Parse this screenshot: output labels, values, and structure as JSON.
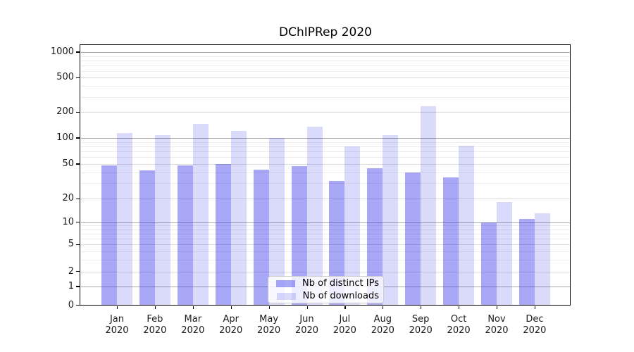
{
  "chart_data": {
    "type": "bar",
    "title": "DChIPRep 2020",
    "categories": [
      "Jan 2020",
      "Feb 2020",
      "Mar 2020",
      "Apr 2020",
      "May 2020",
      "Jun 2020",
      "Jul 2020",
      "Aug 2020",
      "Sep 2020",
      "Oct 2020",
      "Nov 2020",
      "Dec 2020"
    ],
    "series": [
      {
        "name": "Nb of distinct IPs",
        "color": "rgba(25,25,233,0.375)",
        "values": [
          48,
          42,
          48,
          50,
          43,
          47,
          32,
          45,
          40,
          35,
          10,
          11
        ]
      },
      {
        "name": "Nb of downloads",
        "color": "rgba(25,25,233,0.16)",
        "values": [
          114,
          107,
          147,
          120,
          100,
          135,
          80,
          107,
          235,
          81,
          18,
          13
        ]
      }
    ],
    "yscale": "log-with-zero-baseline",
    "yticks": [
      0,
      1,
      2,
      5,
      10,
      20,
      50,
      100,
      200,
      500,
      1000
    ],
    "ylim": [
      0,
      1000
    ],
    "grid": "on",
    "legend_position": "lower center"
  },
  "colors": {
    "background": "#ffffff",
    "axis": "#000000",
    "text": "#1a1a1a",
    "grid_major": "#a8a8a8",
    "grid_mid": "#dcdcdc",
    "grid_minor": "#ececec",
    "legend_border": "#cccccc",
    "legend_background": "rgba(255,255,255,0.8)"
  }
}
